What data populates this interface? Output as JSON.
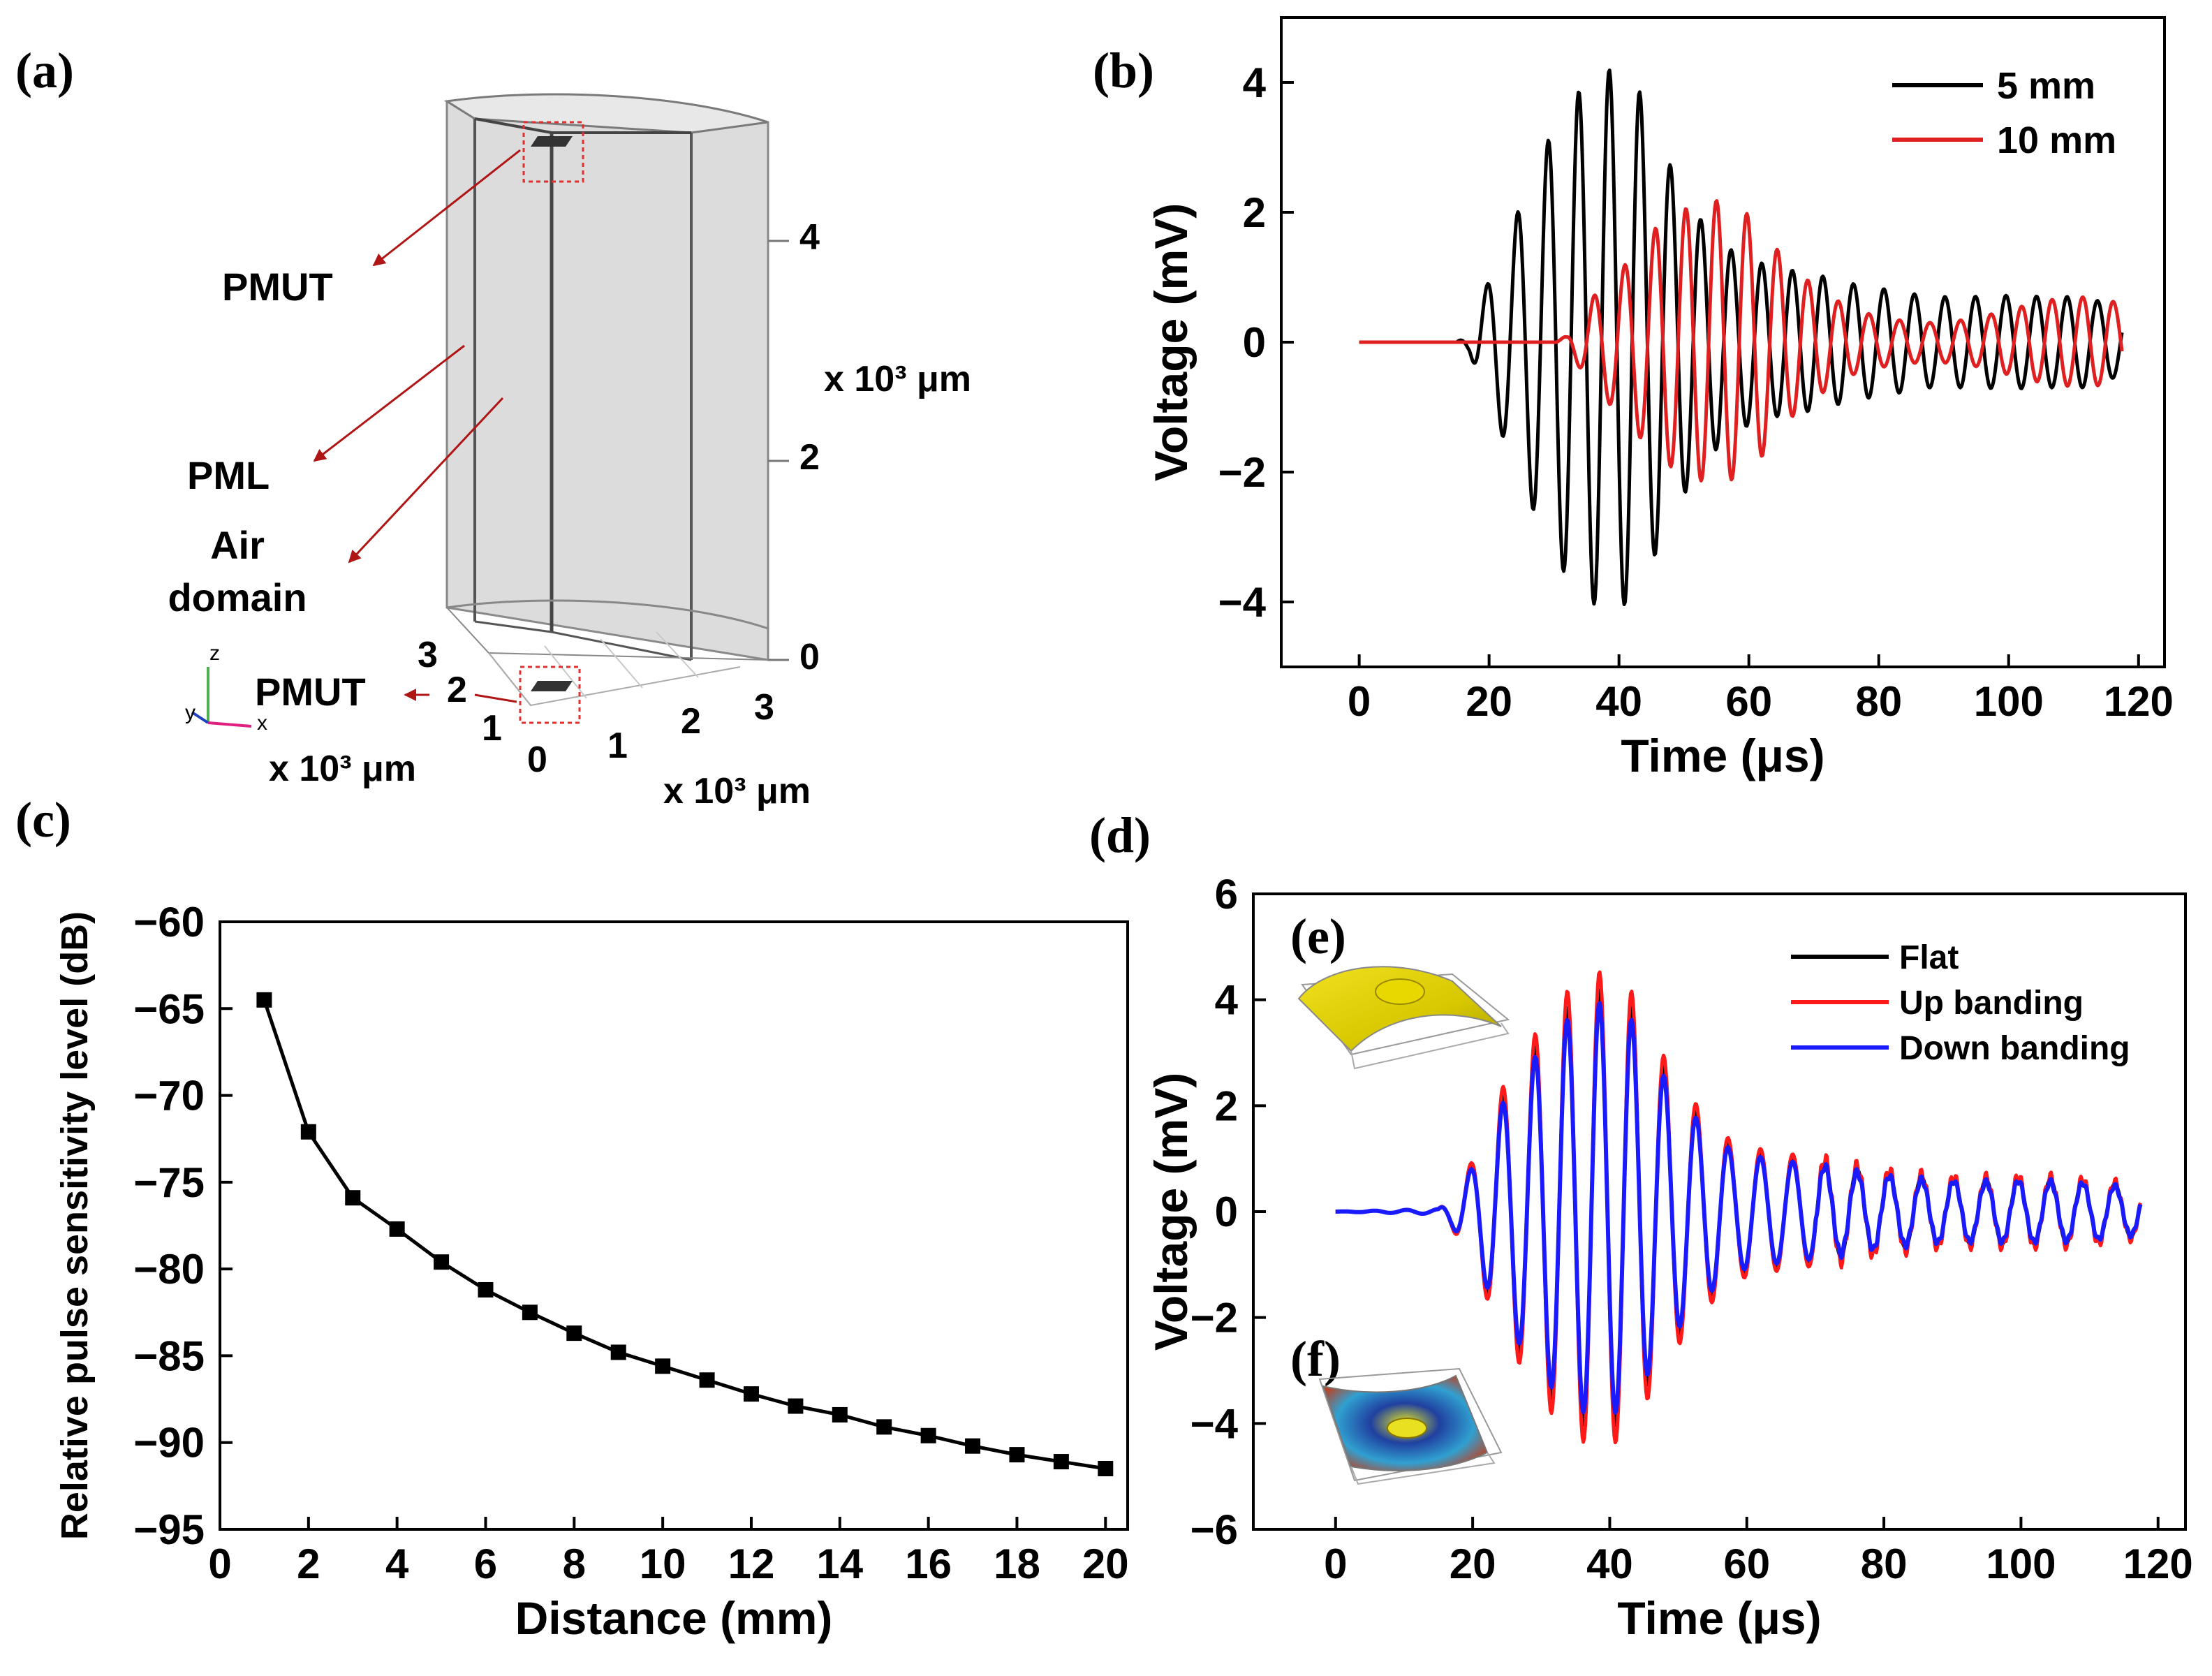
{
  "panels": {
    "a": {
      "label": "(a)",
      "annotations": {
        "pmut_top": "PMUT",
        "pml": "PML",
        "air_domain_line1": "Air",
        "air_domain_line2": "domain",
        "pmut_bottom": "PMUT"
      },
      "z_ticks": [
        "0",
        "2",
        "4"
      ],
      "y_ticks": [
        "3",
        "2",
        "1",
        "0"
      ],
      "x_ticks": [
        "1",
        "2",
        "3"
      ],
      "z_unit": "x 10³ μm",
      "y_unit": "x 10³ μm",
      "x_unit": "x 10³ μm",
      "triad": {
        "z": "z",
        "y": "y",
        "x": "x"
      }
    },
    "b": {
      "label": "(b)"
    },
    "c": {
      "label": "(c)"
    },
    "d": {
      "label": "(d)",
      "inset_e": "(e)",
      "inset_f": "(f)"
    }
  },
  "chart_data": [
    {
      "id": "b",
      "type": "line",
      "title": "",
      "xlabel": "Time (μs)",
      "ylabel": "Voltage (mV)",
      "xlim": [
        -12,
        124
      ],
      "ylim": [
        -5,
        5
      ],
      "xticks": [
        0,
        20,
        40,
        60,
        80,
        100,
        120
      ],
      "yticks": [
        -4,
        -2,
        0,
        2,
        4
      ],
      "legend_position": "top-right",
      "series": [
        {
          "name": "5 mm",
          "color": "#000000",
          "x_start": 0,
          "x_end": 117.5,
          "period_us": 4.7,
          "envelope": [
            [
              0,
              0
            ],
            [
              15,
              0
            ],
            [
              17,
              0.15
            ],
            [
              18.5,
              0.6
            ],
            [
              24,
              1.9
            ],
            [
              28.5,
              3.0
            ],
            [
              33,
              3.8
            ],
            [
              38.5,
              4.2
            ],
            [
              43,
              3.9
            ],
            [
              47.5,
              2.8
            ],
            [
              52.5,
              1.9
            ],
            [
              58,
              1.35
            ],
            [
              64,
              1.15
            ],
            [
              70,
              1.05
            ],
            [
              76,
              0.9
            ],
            [
              82,
              0.8
            ],
            [
              88,
              0.7
            ],
            [
              94,
              0.7
            ],
            [
              100,
              0.72
            ],
            [
              106,
              0.7
            ],
            [
              112,
              0.7
            ],
            [
              117.5,
              0.5
            ]
          ]
        },
        {
          "name": "10 mm",
          "color": "#e02020",
          "x_start": 0,
          "x_end": 117.5,
          "period_us": 4.7,
          "envelope": [
            [
              0,
              0
            ],
            [
              30,
              0
            ],
            [
              32,
              0.1
            ],
            [
              36,
              0.7
            ],
            [
              41,
              1.2
            ],
            [
              46,
              1.8
            ],
            [
              51,
              2.1
            ],
            [
              56,
              2.2
            ],
            [
              61,
              1.9
            ],
            [
              66,
              1.2
            ],
            [
              71,
              0.8
            ],
            [
              76,
              0.5
            ],
            [
              82,
              0.35
            ],
            [
              88,
              0.3
            ],
            [
              94,
              0.35
            ],
            [
              100,
              0.5
            ],
            [
              106,
              0.65
            ],
            [
              112,
              0.7
            ],
            [
              117.5,
              0.6
            ]
          ]
        }
      ]
    },
    {
      "id": "c",
      "type": "line",
      "title": "",
      "xlabel": "Distance (mm)",
      "ylabel": "Relative pulse sensitivity level (dB)",
      "xlim": [
        0,
        20.5
      ],
      "ylim": [
        -95,
        -60
      ],
      "xticks": [
        0,
        2,
        4,
        6,
        8,
        10,
        12,
        14,
        16,
        18,
        20
      ],
      "yticks": [
        -95,
        -90,
        -85,
        -80,
        -75,
        -70,
        -65,
        -60
      ],
      "markers": "square",
      "series": [
        {
          "name": "sensitivity",
          "color": "#000000",
          "x": [
            1,
            2,
            3,
            4,
            5,
            6,
            7,
            8,
            9,
            10,
            11,
            12,
            13,
            14,
            15,
            16,
            17,
            18,
            19,
            20
          ],
          "y": [
            -64.5,
            -72.1,
            -75.9,
            -77.7,
            -79.6,
            -81.2,
            -82.5,
            -83.7,
            -84.8,
            -85.6,
            -86.4,
            -87.2,
            -87.9,
            -88.4,
            -89.1,
            -89.6,
            -90.2,
            -90.7,
            -91.1,
            -91.5
          ]
        }
      ]
    },
    {
      "id": "d",
      "type": "line",
      "title": "",
      "xlabel": "Time (μs)",
      "ylabel": "Voltage (mV)",
      "xlim": [
        -12,
        124
      ],
      "ylim": [
        -6,
        6
      ],
      "xticks": [
        0,
        20,
        40,
        60,
        80,
        100,
        120
      ],
      "yticks": [
        -6,
        -4,
        -2,
        0,
        2,
        4,
        6
      ],
      "legend_position": "top-right",
      "series": [
        {
          "name": "Flat",
          "color": "#000000",
          "x_start": 0,
          "x_end": 117.5,
          "period_us": 4.7,
          "scale": 1.0
        },
        {
          "name": "Up banding",
          "color": "#ff1a1a",
          "x_start": 0,
          "x_end": 117.5,
          "period_us": 4.7,
          "scale": 1.08
        },
        {
          "name": "Down banding",
          "color": "#1a1aff",
          "x_start": 0,
          "x_end": 117.5,
          "period_us": 4.7,
          "scale": 0.94
        }
      ],
      "envelope": [
        [
          0,
          0
        ],
        [
          15,
          0.05
        ],
        [
          17,
          0.3
        ],
        [
          20,
          0.9
        ],
        [
          24,
          2.1
        ],
        [
          28.5,
          3.0
        ],
        [
          33,
          3.8
        ],
        [
          38.5,
          4.2
        ],
        [
          43,
          3.9
        ],
        [
          47.5,
          2.8
        ],
        [
          52.5,
          1.9
        ],
        [
          58,
          1.2
        ],
        [
          64,
          1.05
        ],
        [
          70,
          0.95
        ],
        [
          76,
          0.8
        ],
        [
          82,
          0.7
        ],
        [
          88,
          0.62
        ],
        [
          94,
          0.6
        ],
        [
          100,
          0.62
        ],
        [
          106,
          0.6
        ],
        [
          112,
          0.55
        ],
        [
          117.5,
          0.45
        ]
      ]
    }
  ]
}
